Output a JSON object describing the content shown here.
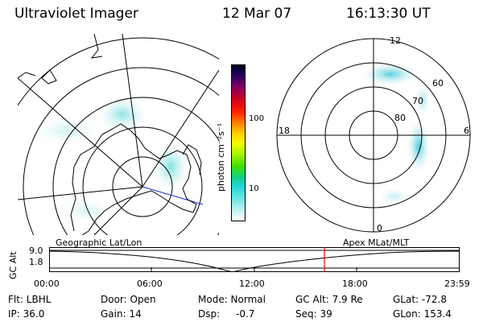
{
  "header": {
    "title": "Ultraviolet Imager",
    "date": "12 Mar 07",
    "time": "16:13:30 UT"
  },
  "colorbar": {
    "unit_label": "photon cm⁻²s⁻¹",
    "ticks": [
      "100",
      "10"
    ]
  },
  "polar_plot": {
    "labels_mlt": [
      "12",
      "18",
      "6",
      "0"
    ],
    "labels_mlat": [
      "60",
      "70",
      "80"
    ]
  },
  "timeline": {
    "left_label": "Geographic Lat/Lon",
    "right_label": "Apex MLat/MLT",
    "axis_title": "GC Alt",
    "y_ticks": [
      "9.0",
      "1.8"
    ],
    "x_ticks": [
      "00:00",
      "06:00",
      "12:00",
      "18:00",
      "23:59"
    ],
    "marker_color": "#ff0000"
  },
  "info": {
    "flt": "Flt: LBHL",
    "door": "Door: Open",
    "mode": "Mode: Normal",
    "gcalt": "GC Alt: 7.9 Re",
    "glat": "GLat: -72.8",
    "ip": "IP: 36.0",
    "gain": "Gain: 14",
    "dsp_label": "Dsp:",
    "dsp_value": "-0.7",
    "seq": "Seq: 39",
    "glon": "GLon: 153.4"
  }
}
